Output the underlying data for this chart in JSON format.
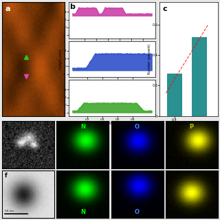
{
  "panel_a_bg": "#8B4513",
  "panel_b_colors": [
    "#CC44AA",
    "#3355CC",
    "#44AA33"
  ],
  "panel_c_bar_color": "#2A9090",
  "panel_c_ylabel": "Number (percent)",
  "label_a": "a",
  "label_b": "b",
  "label_c": "c",
  "label_e": "e",
  "label_f": "f",
  "elem_labels_e": [
    "N",
    "O",
    "P"
  ],
  "elem_labels_f": [
    "N",
    "O",
    ""
  ],
  "elem_label_colors": [
    "#00FF00",
    "#4488FF",
    "#CCCC00"
  ]
}
